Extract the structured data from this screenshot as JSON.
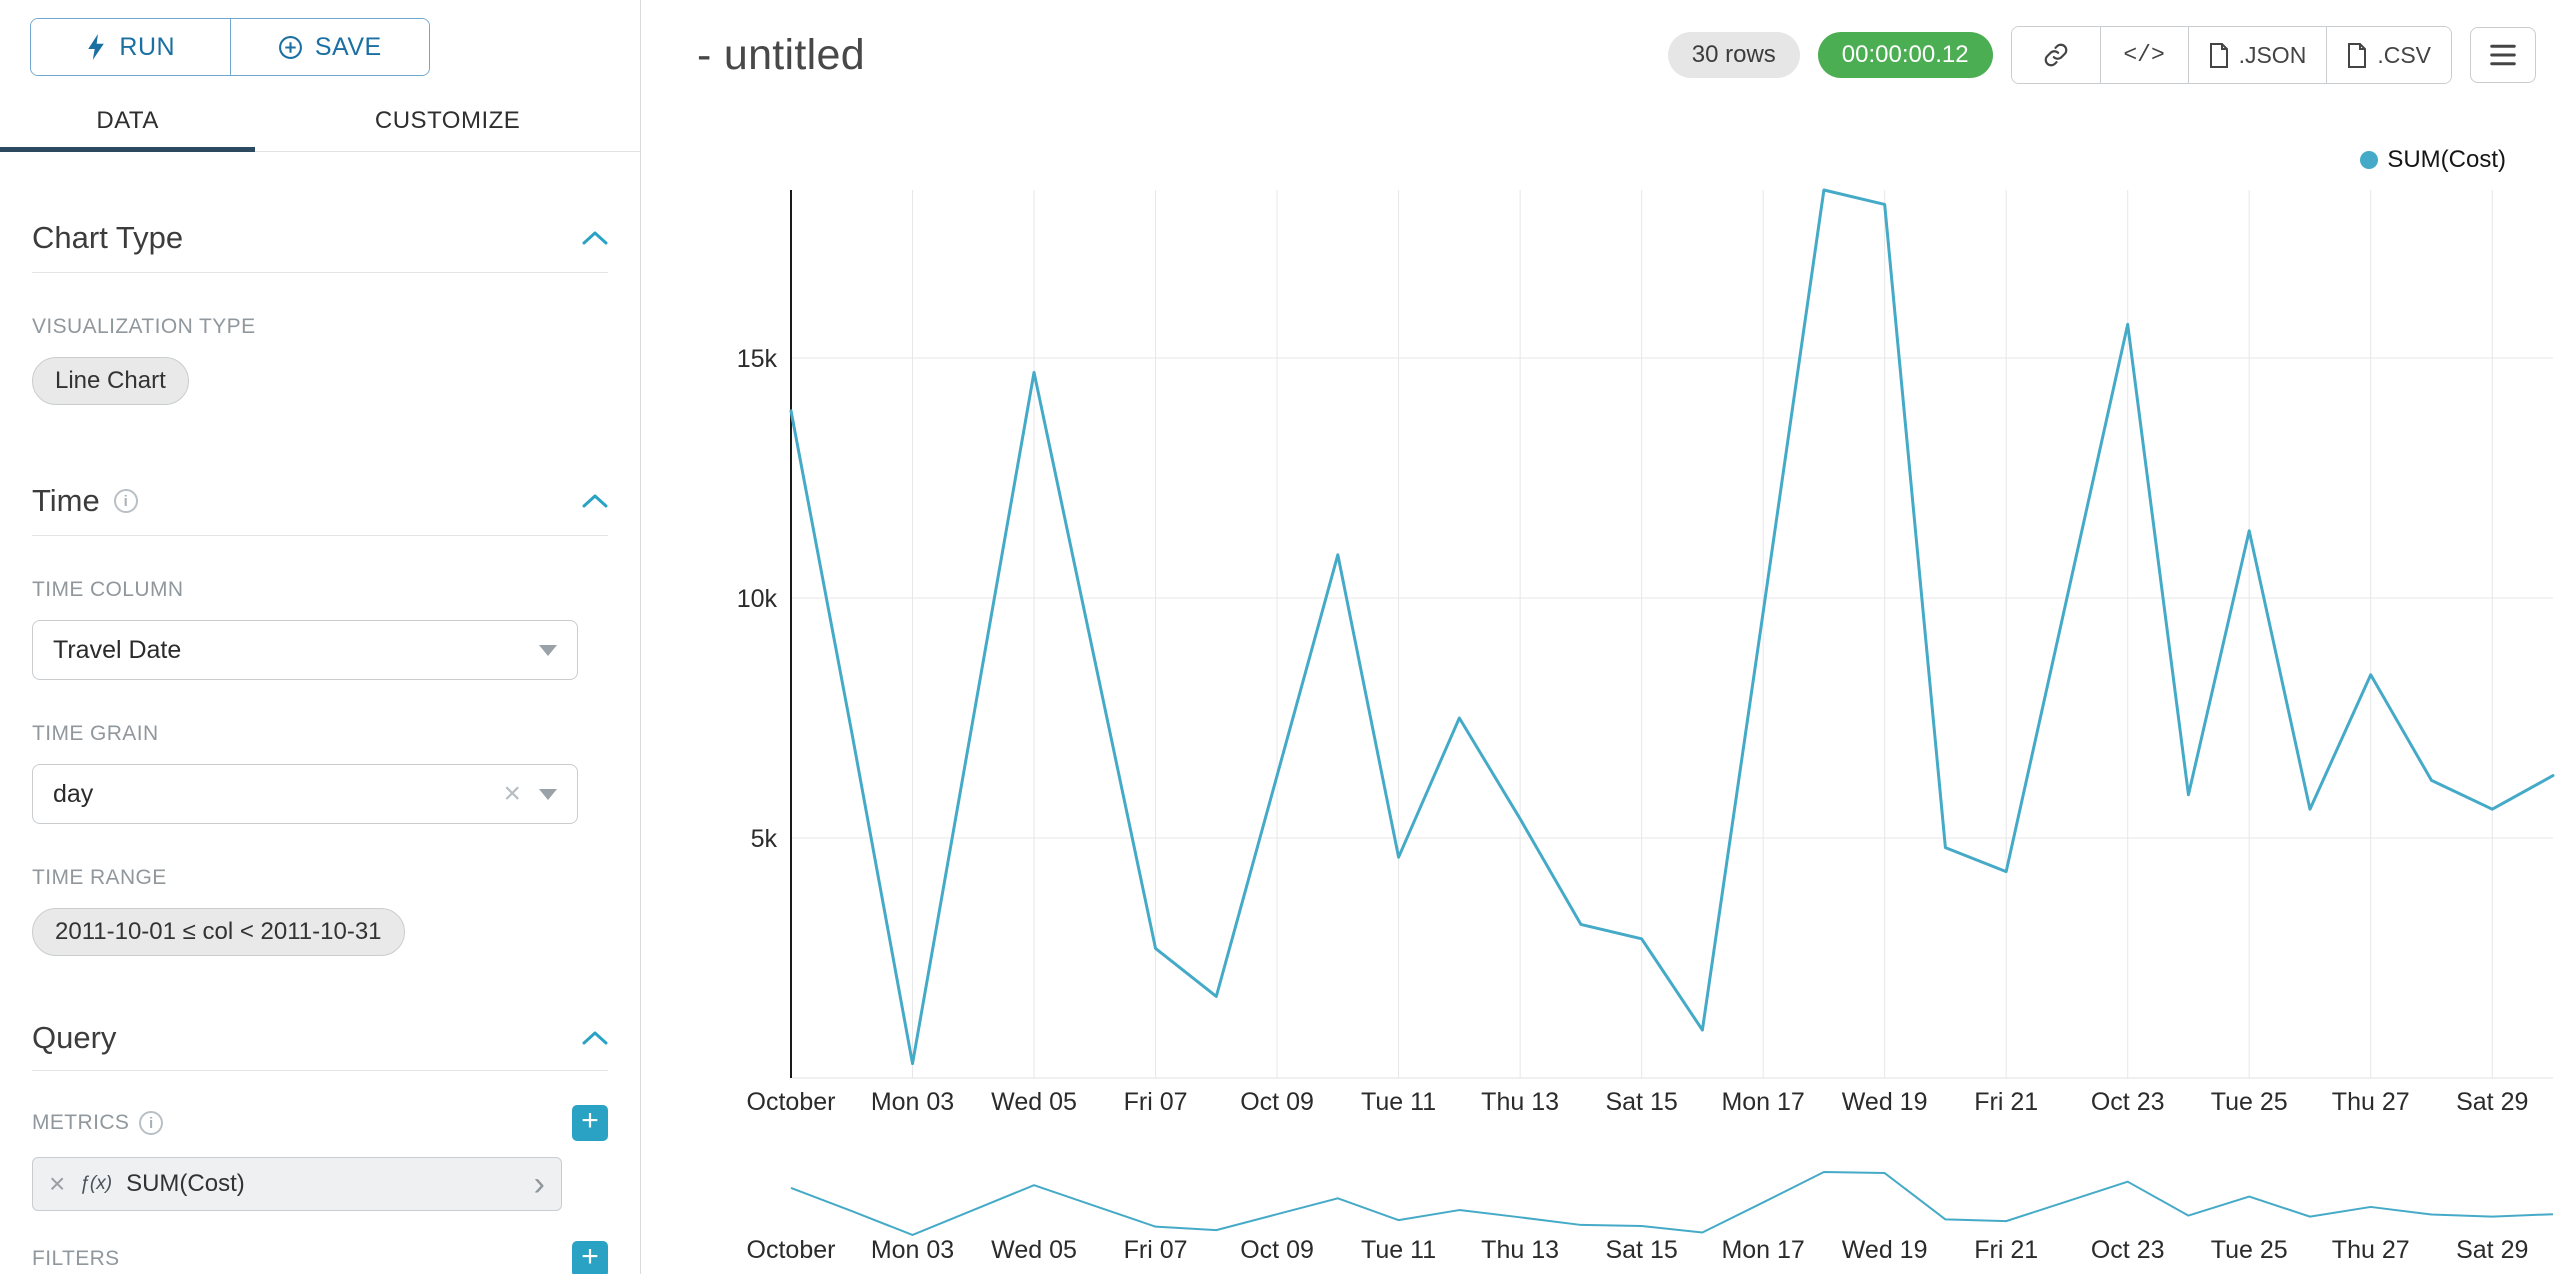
{
  "colors": {
    "accent_blue": "#1b6fa3",
    "accent_teal": "#2aa2c4",
    "series": "#45aac7",
    "timer_green": "#4cae52",
    "active_tab_underline": "#2b4a60"
  },
  "icons": {
    "code": "</>",
    "close": "×",
    "plus": "+",
    "chevron_right": "›",
    "info": "i"
  },
  "sidebar": {
    "run_button": {
      "label": "RUN"
    },
    "save_button": {
      "label": "SAVE"
    },
    "tabs": {
      "data": "DATA",
      "customize": "CUSTOMIZE"
    },
    "chart_type_section": {
      "title": "Chart Type",
      "visualization_type_label": "VISUALIZATION TYPE",
      "visualization_type_value": "Line Chart"
    },
    "time_section": {
      "title": "Time",
      "time_column_label": "TIME COLUMN",
      "time_column_value": "Travel Date",
      "time_grain_label": "TIME GRAIN",
      "time_grain_value": "day",
      "time_range_label": "TIME RANGE",
      "time_range_value": "2011-10-01 ≤ col < 2011-10-31"
    },
    "query_section": {
      "title": "Query",
      "metrics_label": "METRICS",
      "metric_fx": "ƒ(x)",
      "metric_value": "SUM(Cost)",
      "filters_label": "FILTERS"
    }
  },
  "header": {
    "title": "- untitled",
    "rows_badge": "30 rows",
    "timer_badge": "00:00:00.12",
    "json_button": ".JSON",
    "csv_button": ".CSV"
  },
  "chart_data": {
    "type": "line",
    "title": "",
    "xlabel": "",
    "ylabel": "",
    "x": [
      "2011-10-01",
      "2011-10-02",
      "2011-10-03",
      "2011-10-04",
      "2011-10-05",
      "2011-10-06",
      "2011-10-07",
      "2011-10-08",
      "2011-10-09",
      "2011-10-10",
      "2011-10-11",
      "2011-10-12",
      "2011-10-13",
      "2011-10-14",
      "2011-10-15",
      "2011-10-16",
      "2011-10-17",
      "2011-10-18",
      "2011-10-19",
      "2011-10-20",
      "2011-10-21",
      "2011-10-22",
      "2011-10-23",
      "2011-10-24",
      "2011-10-25",
      "2011-10-26",
      "2011-10-27",
      "2011-10-28",
      "2011-10-29",
      "2011-10-30"
    ],
    "series": [
      {
        "name": "SUM(Cost)",
        "color": "#45aac7",
        "values": [
          13900,
          7200,
          300,
          7500,
          14700,
          8700,
          2700,
          1700,
          6300,
          10900,
          4600,
          7500,
          5400,
          3200,
          2900,
          1000,
          9700,
          18500,
          18200,
          4800,
          4300,
          10000,
          15700,
          5900,
          11400,
          5600,
          8400,
          6200,
          5600,
          6300
        ]
      }
    ],
    "x_tick_labels": [
      "October",
      "Mon 03",
      "Wed 05",
      "Fri 07",
      "Oct 09",
      "Tue 11",
      "Thu 13",
      "Sat 15",
      "Mon 17",
      "Wed 19",
      "Fri 21",
      "Oct 23",
      "Tue 25",
      "Thu 27",
      "Sat 29"
    ],
    "x_tick_every": 2,
    "y_ticks": [
      {
        "label": "5k",
        "value": 5000
      },
      {
        "label": "10k",
        "value": 10000
      },
      {
        "label": "15k",
        "value": 15000
      }
    ],
    "ylim": [
      0,
      18500
    ],
    "grid": true,
    "legend": [
      {
        "label": "SUM(Cost)",
        "color": "#45aac7"
      }
    ],
    "legend_position": "top-right",
    "focus_chart": true
  }
}
